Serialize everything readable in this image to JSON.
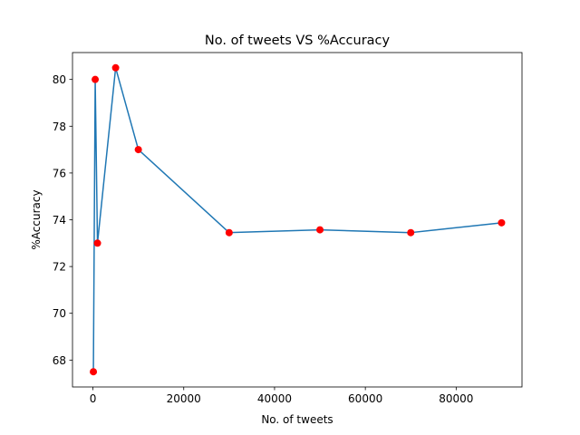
{
  "chart_data": {
    "type": "line",
    "title": "No. of tweets VS %Accuracy",
    "xlabel": "No. of tweets",
    "ylabel": "%Accuracy",
    "xlim": [
      -4500,
      94500
    ],
    "ylim": [
      66.85,
      81.15
    ],
    "x_ticks": [
      0,
      20000,
      40000,
      60000,
      80000
    ],
    "y_ticks": [
      68,
      70,
      72,
      74,
      76,
      78,
      80
    ],
    "grid": false,
    "legend": "none",
    "series": [
      {
        "x": [
          100,
          500,
          1000,
          5000,
          10000,
          30000,
          50000,
          70000,
          90000
        ],
        "y": [
          67.5,
          80.0,
          73.0,
          80.5,
          77.0,
          73.45,
          73.57,
          73.45,
          73.87
        ],
        "line_color": "#1f77b4",
        "marker_color": "#ff0000"
      }
    ]
  }
}
